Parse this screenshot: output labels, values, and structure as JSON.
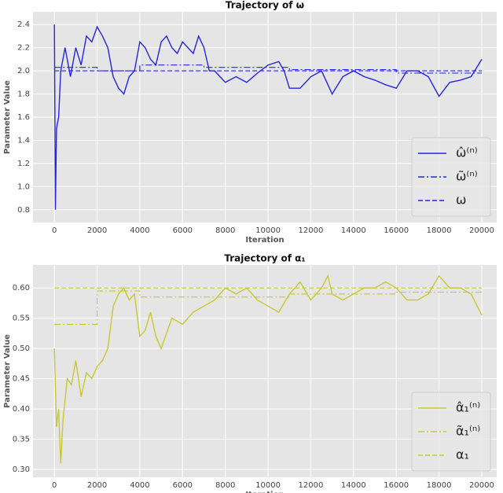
{
  "chart_data": [
    {
      "type": "line",
      "title": "Trajectory of ω",
      "xlabel": "Iteration",
      "ylabel": "Parameter Value",
      "xlim": [
        -1000,
        20700
      ],
      "xticks": [
        0,
        2000,
        4000,
        6000,
        8000,
        10000,
        12000,
        14000,
        16000,
        18000,
        20000
      ],
      "ylim": [
        0.69,
        2.51
      ],
      "yticks": [
        0.8,
        {
          "value": 1,
          "label": "1.0"
        },
        1.2,
        1.4,
        1.6,
        1.8,
        {
          "value": 2,
          "label": "2.0"
        },
        2.2,
        2.4
      ],
      "grid": true,
      "legend": "lower right",
      "series": [
        {
          "name": "ω̂⁽ⁿ⁾",
          "color": "#2424e6",
          "style": "solid",
          "x": [
            0,
            50,
            100,
            200,
            300,
            500,
            750,
            1000,
            1250,
            1500,
            1750,
            2000,
            2250,
            2500,
            2750,
            3000,
            3250,
            3500,
            3750,
            4000,
            4250,
            4500,
            4750,
            5000,
            5250,
            5500,
            5750,
            6000,
            6250,
            6500,
            6750,
            7000,
            7250,
            7500,
            7750,
            8000,
            8500,
            9000,
            9500,
            10000,
            10500,
            10750,
            11000,
            11500,
            12000,
            12500,
            13000,
            13500,
            14000,
            14500,
            15000,
            15500,
            16000,
            16500,
            17000,
            17500,
            18000,
            18500,
            19000,
            19500,
            20000
          ],
          "values": [
            2.4,
            0.8,
            1.5,
            1.6,
            2.0,
            2.2,
            1.95,
            2.2,
            2.05,
            2.3,
            2.25,
            2.38,
            2.3,
            2.2,
            1.95,
            1.85,
            1.8,
            1.95,
            2.0,
            2.25,
            2.2,
            2.1,
            2.05,
            2.25,
            2.3,
            2.2,
            2.15,
            2.25,
            2.2,
            2.15,
            2.3,
            2.2,
            2.0,
            2.0,
            1.95,
            1.9,
            1.95,
            1.9,
            1.98,
            2.05,
            2.08,
            2.0,
            1.85,
            1.85,
            1.95,
            2.0,
            1.8,
            1.95,
            2.0,
            1.95,
            1.92,
            1.88,
            1.85,
            2.0,
            2.0,
            1.95,
            1.78,
            1.9,
            1.92,
            1.95,
            2.1
          ]
        },
        {
          "name": "ω̃⁽ⁿ⁾",
          "color": "#2424e6",
          "style": "dashdot",
          "x": [
            0,
            2000,
            2000,
            4000,
            4000,
            7000,
            7000,
            11000,
            11000,
            16000,
            16000,
            20000
          ],
          "values": [
            2.03,
            2.03,
            2.0,
            2.0,
            2.05,
            2.05,
            2.03,
            2.03,
            2.01,
            2.01,
            1.98,
            1.98
          ]
        },
        {
          "name": "ω",
          "color": "#2424e6",
          "style": "dashed",
          "x": [
            0,
            20000
          ],
          "values": [
            2.0,
            2.0
          ]
        }
      ]
    },
    {
      "type": "line",
      "title": "Trajectory of α₁",
      "xlabel": "Iteration",
      "ylabel": "Parameter Value",
      "xlim": [
        -1000,
        20700
      ],
      "xticks": [
        0,
        2000,
        4000,
        6000,
        8000,
        10000,
        12000,
        14000,
        16000,
        18000,
        20000
      ],
      "ylim": [
        0.287,
        0.638
      ],
      "yticks": [
        {
          "value": 0.3,
          "label": "0.30"
        },
        0.35,
        {
          "value": 0.4,
          "label": "0.40"
        },
        0.45,
        {
          "value": 0.5,
          "label": "0.50"
        },
        0.55,
        {
          "value": 0.6,
          "label": "0.60"
        }
      ],
      "grid": true,
      "legend": "lower right",
      "series": [
        {
          "name": "α̂₁⁽ⁿ⁾",
          "color": "#c8c830",
          "style": "solid",
          "x": [
            0,
            100,
            200,
            300,
            400,
            600,
            800,
            1000,
            1250,
            1500,
            1750,
            2000,
            2250,
            2500,
            2750,
            3000,
            3250,
            3500,
            3750,
            4000,
            4250,
            4500,
            4750,
            5000,
            5500,
            6000,
            6500,
            7000,
            7500,
            8000,
            8500,
            9000,
            9500,
            10000,
            10500,
            11000,
            11500,
            12000,
            12500,
            12800,
            13000,
            13500,
            14000,
            14500,
            15000,
            15500,
            16000,
            16500,
            17000,
            17500,
            18000,
            18500,
            19000,
            19500,
            20000
          ],
          "values": [
            0.5,
            0.37,
            0.4,
            0.31,
            0.38,
            0.45,
            0.44,
            0.48,
            0.42,
            0.46,
            0.45,
            0.47,
            0.48,
            0.5,
            0.57,
            0.59,
            0.6,
            0.58,
            0.59,
            0.52,
            0.53,
            0.56,
            0.52,
            0.5,
            0.55,
            0.54,
            0.56,
            0.57,
            0.58,
            0.6,
            0.59,
            0.6,
            0.58,
            0.57,
            0.56,
            0.59,
            0.61,
            0.58,
            0.6,
            0.62,
            0.59,
            0.58,
            0.59,
            0.6,
            0.6,
            0.61,
            0.6,
            0.58,
            0.58,
            0.59,
            0.62,
            0.6,
            0.6,
            0.59,
            0.555
          ]
        },
        {
          "name": "α̃₁⁽ⁿ⁾",
          "color": "#c8c830",
          "style": "dashdot",
          "x": [
            0,
            2000,
            2000,
            4000,
            4000,
            11000,
            11000,
            16000,
            16000,
            20000
          ],
          "values": [
            0.54,
            0.54,
            0.595,
            0.595,
            0.585,
            0.585,
            0.59,
            0.59,
            0.593,
            0.593
          ]
        },
        {
          "name": "α₁",
          "color": "#c8c830",
          "style": "dashed",
          "x": [
            0,
            20000
          ],
          "values": [
            0.6,
            0.6
          ]
        }
      ]
    }
  ]
}
